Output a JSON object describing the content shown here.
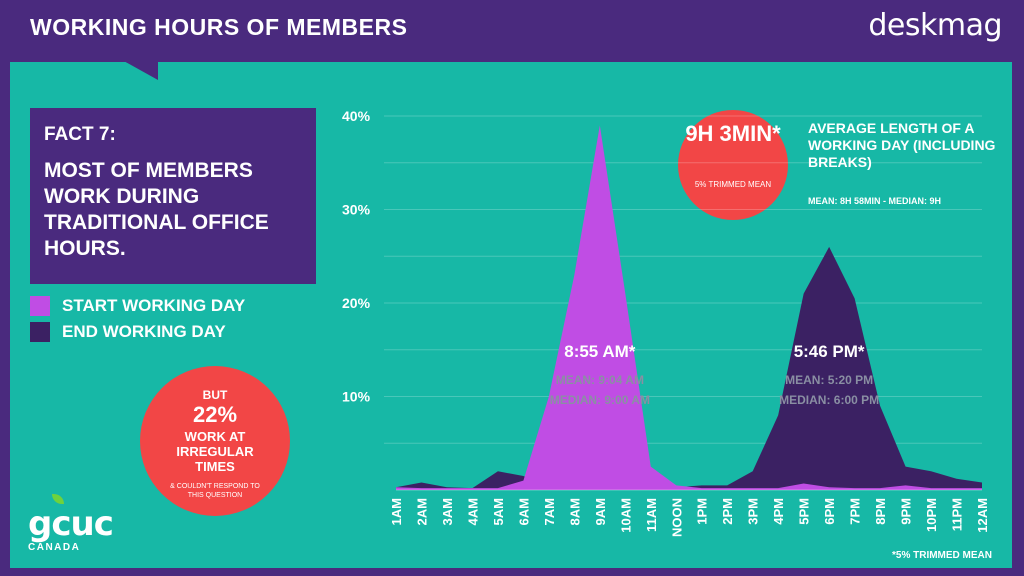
{
  "header": {
    "title": "WORKING HOURS OF MEMBERS",
    "brand": "deskmag"
  },
  "fact": {
    "heading": "FACT 7:",
    "body": "MOST OF MEMBERS WORK DURING TRADITIONAL OFFICE HOURS."
  },
  "legend": [
    {
      "label": "START WORKING DAY",
      "color": "#c04de4"
    },
    {
      "label": "END WORKING DAY",
      "color": "#3b2163"
    }
  ],
  "irregular": {
    "line1": "BUT",
    "line2": "22%",
    "line3": "WORK AT IRREGULAR TIMES",
    "note": "& COULDN'T RESPOND TO THIS QUESTION"
  },
  "average": {
    "value": "9H 3MIN*",
    "value_note": "5% TRIMMED MEAN",
    "label": "AVERAGE LENGTH OF A WORKING DAY (INCLUDING BREAKS)",
    "stats": "MEAN: 8H 58MIN - MEDIAN: 9H"
  },
  "footer": {
    "logo": "gcuc",
    "logo_sub": "CANADA",
    "footnote": "*5% TRIMMED MEAN"
  },
  "colors": {
    "background": "#17b8a6",
    "frame": "#4a2a7e",
    "accent": "#f24646"
  },
  "chart_data": {
    "type": "area",
    "ylim": [
      0,
      40
    ],
    "yticks": [
      "10%",
      "20%",
      "30%",
      "40%"
    ],
    "ytick_values": [
      10,
      20,
      30,
      40
    ],
    "categories": [
      "1AM",
      "2AM",
      "3AM",
      "4AM",
      "5AM",
      "6AM",
      "7AM",
      "8AM",
      "9AM",
      "10AM",
      "11AM",
      "NOON",
      "1PM",
      "2PM",
      "3PM",
      "4PM",
      "5PM",
      "6PM",
      "7PM",
      "8PM",
      "9PM",
      "10PM",
      "11PM",
      "12AM"
    ],
    "series": [
      {
        "name": "END WORKING DAY",
        "color": "#3b2163",
        "values": [
          0.3,
          0.8,
          0.3,
          0.2,
          2.0,
          1.5,
          0.3,
          0.2,
          0.2,
          0.2,
          0.3,
          0.3,
          0.5,
          0.5,
          2.0,
          8.0,
          21.0,
          26.0,
          20.5,
          9.0,
          2.5,
          2.0,
          1.2,
          0.8
        ]
      },
      {
        "name": "START WORKING DAY",
        "color": "#c04de4",
        "values": [
          0.3,
          0.2,
          0.2,
          0.2,
          0.2,
          1.0,
          10.0,
          23.0,
          39.0,
          21.0,
          2.5,
          0.5,
          0.2,
          0.2,
          0.2,
          0.2,
          0.7,
          0.3,
          0.2,
          0.2,
          0.5,
          0.2,
          0.2,
          0.2
        ]
      }
    ],
    "annotations": [
      {
        "main": "8:55 AM*",
        "mean": "MEAN:  9:04 AM",
        "median": "MEDIAN:   9:00 AM",
        "at": "9AM"
      },
      {
        "main": "5:46 PM*",
        "mean": "MEAN: 5:20 PM",
        "median": "MEDIAN: 6:00 PM",
        "at": "6PM"
      }
    ]
  }
}
